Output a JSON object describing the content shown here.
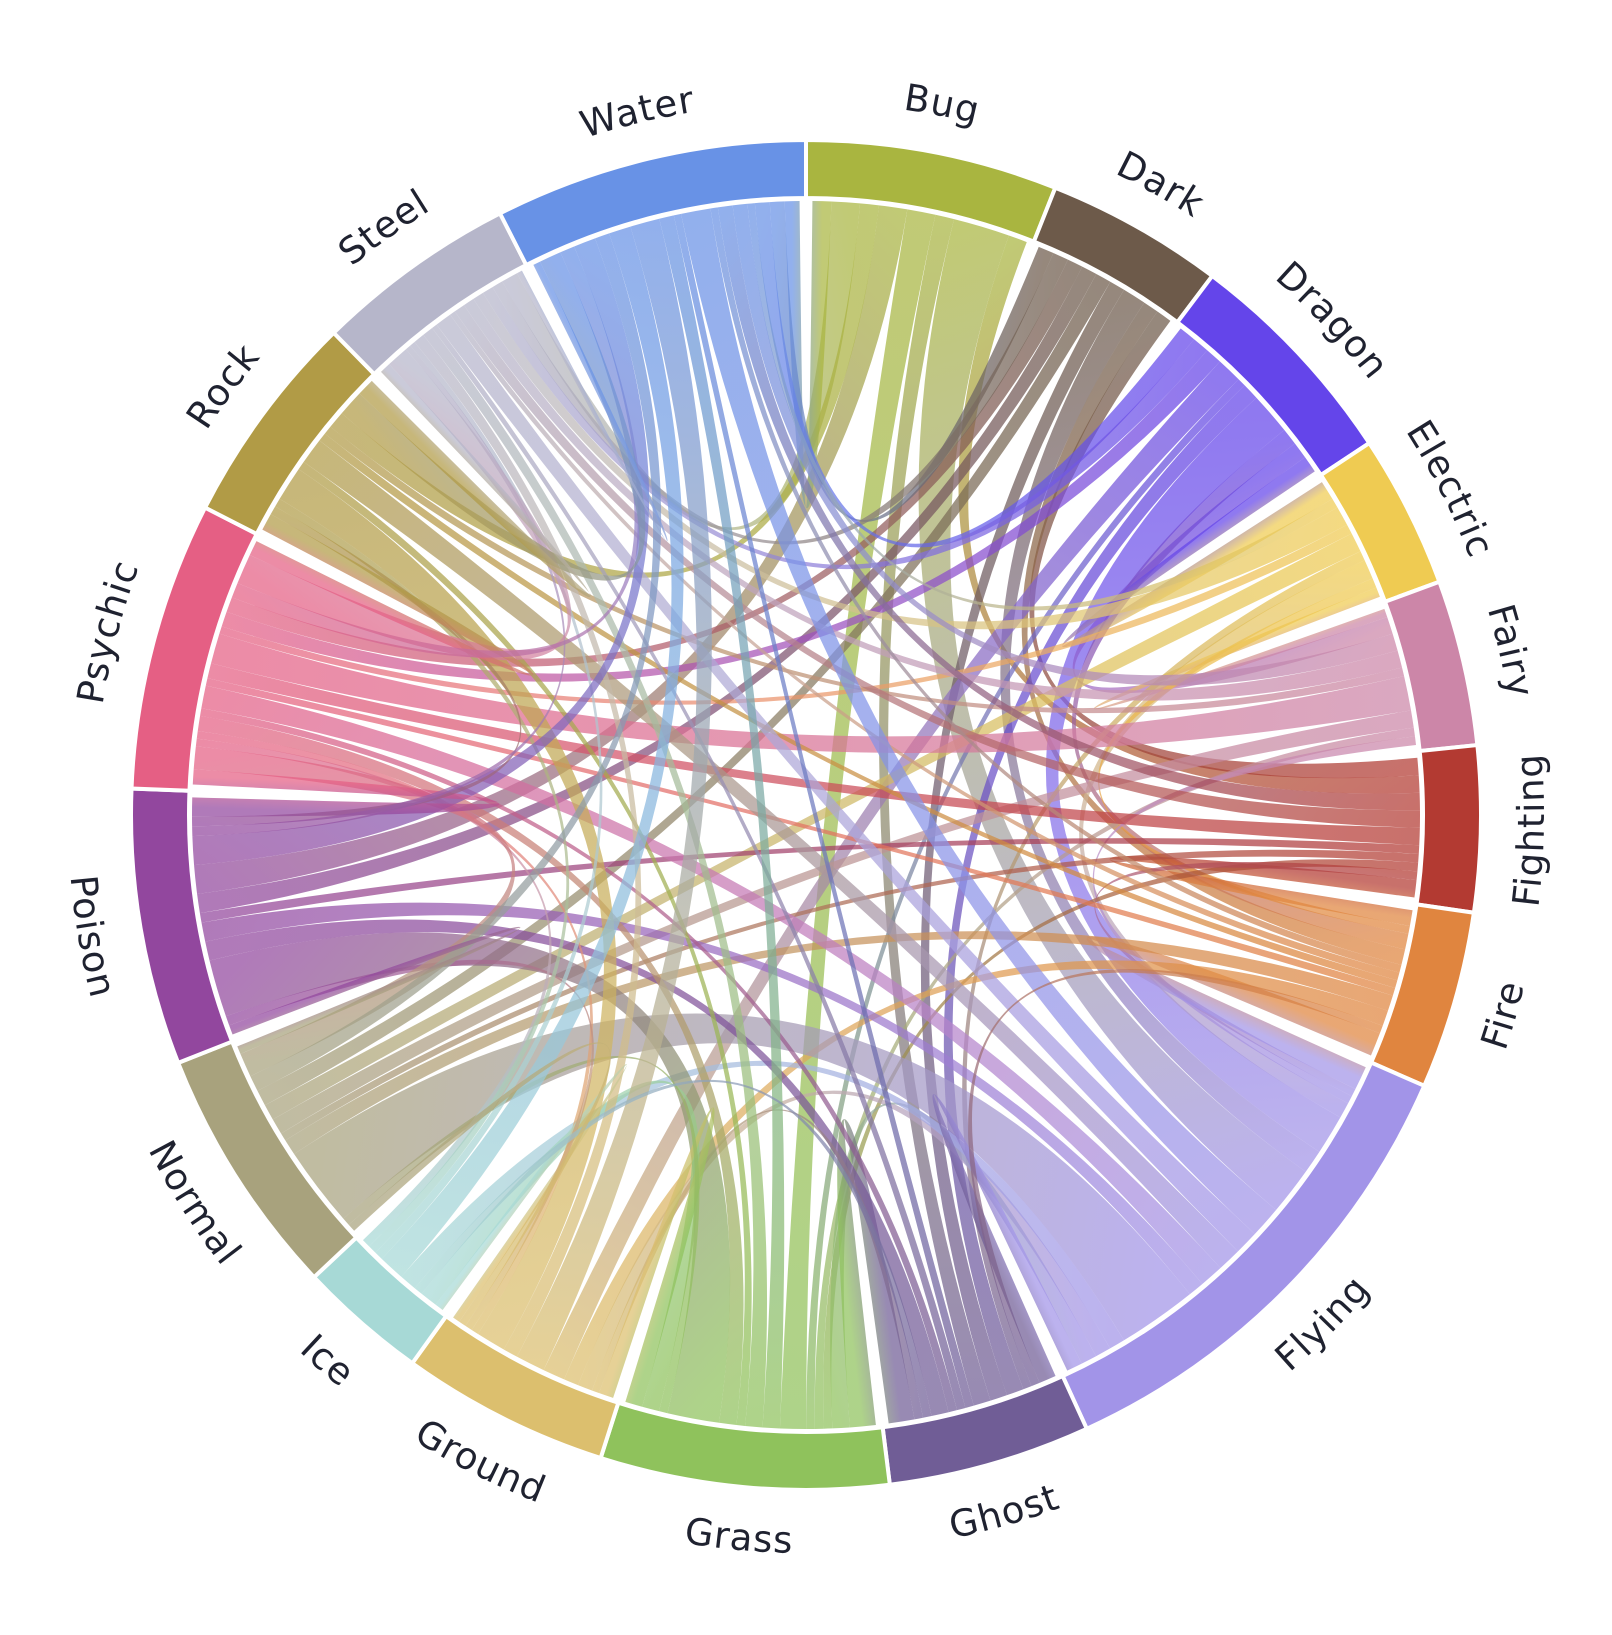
{
  "chart_data": {
    "type": "chord",
    "title": "",
    "groups": [
      {
        "name": "Bug",
        "color": "#a9b540",
        "span_deg": 20.5
      },
      {
        "name": "Dark",
        "color": "#6d5a4a",
        "span_deg": 14.5
      },
      {
        "name": "Dragon",
        "color": "#6445ea",
        "span_deg": 18.5
      },
      {
        "name": "Electric",
        "color": "#efcb52",
        "span_deg": 12.5
      },
      {
        "name": "Fairy",
        "color": "#cc86a8",
        "span_deg": 13.5
      },
      {
        "name": "Fighting",
        "color": "#b33a32",
        "span_deg": 13.5
      },
      {
        "name": "Fire",
        "color": "#e0853f",
        "span_deg": 14.5
      },
      {
        "name": "Flying",
        "color": "#a294e8",
        "span_deg": 39.5
      },
      {
        "name": "Ghost",
        "color": "#705d96",
        "span_deg": 16.5
      },
      {
        "name": "Grass",
        "color": "#8fc25c",
        "span_deg": 23.5
      },
      {
        "name": "Ground",
        "color": "#dcbf6e",
        "span_deg": 17.0
      },
      {
        "name": "Ice",
        "color": "#a7d9d6",
        "span_deg": 10.5
      },
      {
        "name": "Normal",
        "color": "#a8a27d",
        "span_deg": 20.5
      },
      {
        "name": "Poison",
        "color": "#92479e",
        "span_deg": 22.5
      },
      {
        "name": "Psychic",
        "color": "#e55f84",
        "span_deg": 23.5
      },
      {
        "name": "Rock",
        "color": "#b19b46",
        "span_deg": 17.5
      },
      {
        "name": "Steel",
        "color": "#b6b6ca",
        "span_deg": 16.5
      },
      {
        "name": "Water",
        "color": "#6892e6",
        "span_deg": 25.5
      }
    ],
    "links": [
      [
        "Bug",
        "Flying",
        6
      ],
      [
        "Bug",
        "Poison",
        3
      ],
      [
        "Bug",
        "Steel",
        3
      ],
      [
        "Bug",
        "Grass",
        3
      ],
      [
        "Bug",
        "Ghost",
        2
      ],
      [
        "Bug",
        "Rock",
        2
      ],
      [
        "Bug",
        "Water",
        2
      ],
      [
        "Bug",
        "Fighting",
        2
      ],
      [
        "Dark",
        "Flying",
        3
      ],
      [
        "Dark",
        "Fighting",
        2
      ],
      [
        "Dark",
        "Psychic",
        2
      ],
      [
        "Dark",
        "Ghost",
        2
      ],
      [
        "Dark",
        "Fire",
        2
      ],
      [
        "Dark",
        "Water",
        2
      ],
      [
        "Dark",
        "Steel",
        2
      ],
      [
        "Dark",
        "Normal",
        2
      ],
      [
        "Dark",
        "Poison",
        2
      ],
      [
        "Dragon",
        "Flying",
        5
      ],
      [
        "Dragon",
        "Ground",
        3
      ],
      [
        "Dragon",
        "Fairy",
        2
      ],
      [
        "Dragon",
        "Water",
        2
      ],
      [
        "Dragon",
        "Fire",
        2
      ],
      [
        "Dragon",
        "Steel",
        2
      ],
      [
        "Dragon",
        "Electric",
        2
      ],
      [
        "Dragon",
        "Psychic",
        2
      ],
      [
        "Dragon",
        "Ghost",
        2
      ],
      [
        "Dragon",
        "Grass",
        1
      ],
      [
        "Electric",
        "Flying",
        2
      ],
      [
        "Electric",
        "Steel",
        2
      ],
      [
        "Electric",
        "Normal",
        2
      ],
      [
        "Electric",
        "Fairy",
        1
      ],
      [
        "Electric",
        "Water",
        1
      ],
      [
        "Electric",
        "Psychic",
        1
      ],
      [
        "Electric",
        "Ghost",
        1
      ],
      [
        "Electric",
        "Fire",
        1
      ],
      [
        "Fairy",
        "Psychic",
        4
      ],
      [
        "Fairy",
        "Steel",
        2
      ],
      [
        "Fairy",
        "Normal",
        2
      ],
      [
        "Fairy",
        "Water",
        2
      ],
      [
        "Fairy",
        "Grass",
        1
      ],
      [
        "Fairy",
        "Flying",
        1
      ],
      [
        "Fairy",
        "Rock",
        1
      ],
      [
        "Fighting",
        "Water",
        2
      ],
      [
        "Fighting",
        "Psychic",
        2
      ],
      [
        "Fighting",
        "Steel",
        2
      ],
      [
        "Fighting",
        "Fire",
        2
      ],
      [
        "Fighting",
        "Grass",
        1
      ],
      [
        "Fighting",
        "Poison",
        1
      ],
      [
        "Fighting",
        "Normal",
        1
      ],
      [
        "Fighting",
        "Flying",
        1
      ],
      [
        "Fire",
        "Flying",
        3
      ],
      [
        "Fire",
        "Ground",
        2
      ],
      [
        "Fire",
        "Normal",
        2
      ],
      [
        "Fire",
        "Rock",
        1
      ],
      [
        "Fire",
        "Water",
        1
      ],
      [
        "Fire",
        "Psychic",
        1
      ],
      [
        "Fire",
        "Steel",
        1
      ],
      [
        "Flying",
        "Normal",
        10
      ],
      [
        "Flying",
        "Water",
        4
      ],
      [
        "Flying",
        "Steel",
        3
      ],
      [
        "Flying",
        "Psychic",
        3
      ],
      [
        "Flying",
        "Rock",
        3
      ],
      [
        "Flying",
        "Ground",
        2
      ],
      [
        "Flying",
        "Grass",
        2
      ],
      [
        "Flying",
        "Ice",
        2
      ],
      [
        "Flying",
        "Poison",
        2
      ],
      [
        "Flying",
        "Ghost",
        2
      ],
      [
        "Ghost",
        "Grass",
        3
      ],
      [
        "Ghost",
        "Poison",
        2
      ],
      [
        "Ghost",
        "Fire",
        1
      ],
      [
        "Ghost",
        "Psychic",
        1
      ],
      [
        "Ghost",
        "Steel",
        1
      ],
      [
        "Ghost",
        "Ground",
        1
      ],
      [
        "Ghost",
        "Water",
        1
      ],
      [
        "Grass",
        "Poison",
        6
      ],
      [
        "Grass",
        "Psychic",
        2
      ],
      [
        "Grass",
        "Steel",
        2
      ],
      [
        "Grass",
        "Ice",
        2
      ],
      [
        "Grass",
        "Water",
        2
      ],
      [
        "Grass",
        "Ground",
        2
      ],
      [
        "Grass",
        "Rock",
        1
      ],
      [
        "Grass",
        "Normal",
        1
      ],
      [
        "Ground",
        "Rock",
        4
      ],
      [
        "Ground",
        "Water",
        4
      ],
      [
        "Ground",
        "Steel",
        2
      ],
      [
        "Ground",
        "Psychic",
        1
      ],
      [
        "Ground",
        "Ice",
        1
      ],
      [
        "Ground",
        "Poison",
        1
      ],
      [
        "Ice",
        "Water",
        3
      ],
      [
        "Ice",
        "Psychic",
        1
      ],
      [
        "Ice",
        "Rock",
        1
      ],
      [
        "Ice",
        "Steel",
        1
      ],
      [
        "Ice",
        "Ghost",
        1
      ],
      [
        "Normal",
        "Psychic",
        3
      ],
      [
        "Normal",
        "Water",
        2
      ],
      [
        "Normal",
        "Poison",
        1
      ],
      [
        "Normal",
        "Ground",
        1
      ],
      [
        "Poison",
        "Water",
        3
      ],
      [
        "Poison",
        "Psychic",
        2
      ],
      [
        "Poison",
        "Rock",
        1
      ],
      [
        "Poison",
        "Steel",
        1
      ],
      [
        "Psychic",
        "Steel",
        4
      ],
      [
        "Psychic",
        "Rock",
        2
      ],
      [
        "Psychic",
        "Water",
        2
      ],
      [
        "Rock",
        "Water",
        3
      ],
      [
        "Rock",
        "Steel",
        2
      ],
      [
        "Steel",
        "Water",
        1
      ]
    ]
  }
}
